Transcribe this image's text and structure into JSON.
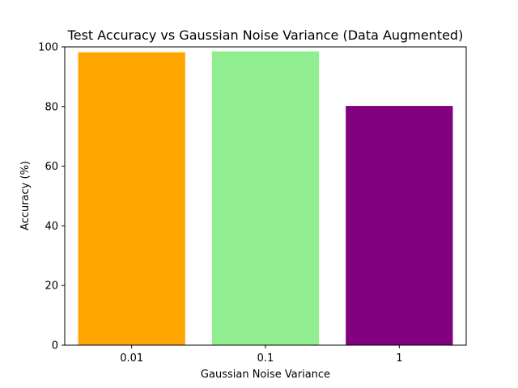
{
  "chart_data": {
    "type": "bar",
    "title": "Test Accuracy vs Gaussian Noise Variance (Data Augmented)",
    "xlabel": "Gaussian Noise Variance",
    "ylabel": "Accuracy (%)",
    "categories": [
      "0.01",
      "0.1",
      "1"
    ],
    "values": [
      98.2,
      98.5,
      80.2
    ],
    "colors": [
      "#ffa500",
      "#90ee90",
      "#800080"
    ],
    "ylim": [
      0,
      100
    ],
    "yticks": [
      0,
      20,
      40,
      60,
      80,
      100
    ],
    "grid": false,
    "legend": "none"
  }
}
